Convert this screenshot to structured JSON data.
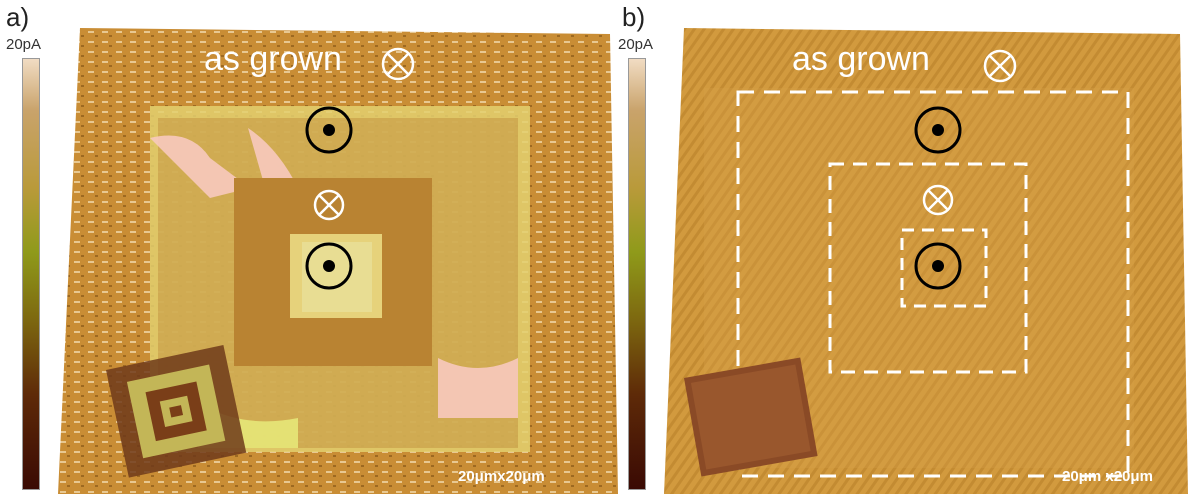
{
  "panels": [
    {
      "label": "a)",
      "colorbar_max": "20pA",
      "annotation": "as grown",
      "scale": "20μmx20μm"
    },
    {
      "label": "b)",
      "colorbar_max": "20pA",
      "annotation": "as grown",
      "scale": "20μm x20μm"
    }
  ],
  "colors": {
    "background_light": "#d9a24a",
    "background_dark": "#b27a23",
    "pink_regions": "#f5c7bd",
    "yellow_regions": "#d6c85a",
    "markers": "#000000",
    "dashed_lines": "#ffffff"
  },
  "symbols": {
    "into_page": "circle-cross-icon",
    "out_of_page": "circle-dot-icon"
  }
}
